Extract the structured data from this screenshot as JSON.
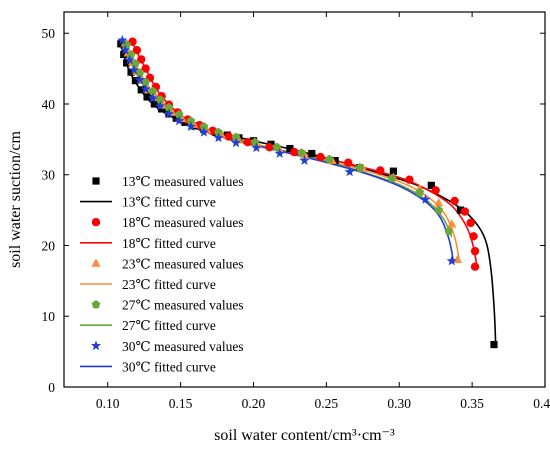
{
  "chart_data": {
    "type": "scatter",
    "title": "",
    "xlabel": "soil water content/cm³·cm⁻³",
    "ylabel": "soil water suction/cm",
    "xlim": [
      0.07,
      0.4
    ],
    "ylim": [
      0,
      53
    ],
    "x_ticks": [
      "0.10",
      "0.15",
      "0.20",
      "0.25",
      "0.30",
      "0.35",
      "0.40"
    ],
    "y_ticks": [
      "0",
      "10",
      "20",
      "30",
      "40",
      "50"
    ],
    "grid": false,
    "legend_position": "left",
    "series": [
      {
        "name": "13℃ measured values",
        "kind": "measured",
        "marker": "square",
        "color": "#000000",
        "x": [
          0.109,
          0.111,
          0.113,
          0.116,
          0.119,
          0.123,
          0.127,
          0.132,
          0.137,
          0.142,
          0.147,
          0.153,
          0.159,
          0.166,
          0.174,
          0.182,
          0.19,
          0.2,
          0.212,
          0.225,
          0.24,
          0.256,
          0.273,
          0.296,
          0.322,
          0.342,
          0.365
        ],
        "y": [
          48.5,
          47.0,
          45.8,
          44.5,
          43.3,
          42.0,
          41.0,
          40.0,
          39.3,
          38.6,
          38.0,
          37.4,
          36.9,
          36.4,
          36.0,
          35.6,
          35.2,
          34.8,
          34.3,
          33.7,
          33.0,
          32.0,
          31.0,
          30.5,
          28.5,
          25.0,
          6.0
        ]
      },
      {
        "name": "13℃ fitted curve",
        "kind": "fitted",
        "color": "#000000",
        "x": [
          0.109,
          0.115,
          0.125,
          0.135,
          0.15,
          0.17,
          0.2,
          0.23,
          0.26,
          0.29,
          0.31,
          0.33,
          0.345,
          0.355,
          0.36,
          0.363,
          0.365,
          0.366,
          0.366
        ],
        "y": [
          48.3,
          44.6,
          41.3,
          39.3,
          37.6,
          36.2,
          34.8,
          33.4,
          31.8,
          30.0,
          28.7,
          26.8,
          24.8,
          22.5,
          20.2,
          16.5,
          11.5,
          7.0,
          5.5
        ]
      },
      {
        "name": "18℃ measured values",
        "kind": "measured",
        "marker": "circle",
        "color": "#ff0000",
        "x": [
          0.117,
          0.12,
          0.123,
          0.126,
          0.129,
          0.133,
          0.137,
          0.142,
          0.148,
          0.155,
          0.163,
          0.172,
          0.183,
          0.196,
          0.211,
          0.228,
          0.246,
          0.265,
          0.287,
          0.307,
          0.325,
          0.338,
          0.345,
          0.349,
          0.351,
          0.352,
          0.352
        ],
        "y": [
          48.8,
          47.6,
          46.3,
          45.0,
          43.7,
          42.4,
          41.1,
          39.9,
          38.8,
          37.8,
          37.0,
          36.2,
          35.4,
          34.6,
          33.9,
          33.2,
          32.5,
          31.7,
          30.6,
          29.3,
          27.8,
          26.3,
          24.8,
          23.2,
          21.3,
          19.2,
          17.0
        ]
      },
      {
        "name": "18℃ fitted curve",
        "kind": "fitted",
        "color": "#ff0000",
        "x": [
          0.117,
          0.125,
          0.135,
          0.148,
          0.165,
          0.19,
          0.22,
          0.26,
          0.3,
          0.32,
          0.335,
          0.343,
          0.348,
          0.351,
          0.353
        ],
        "y": [
          48.6,
          45.4,
          41.6,
          38.8,
          36.6,
          34.9,
          33.4,
          31.8,
          29.6,
          27.8,
          25.8,
          23.8,
          21.8,
          19.7,
          17.5
        ]
      },
      {
        "name": "23℃ measured values",
        "kind": "measured",
        "marker": "triangle",
        "color": "#ff8c3a",
        "x": [
          0.112,
          0.114,
          0.117,
          0.12,
          0.124,
          0.128,
          0.133,
          0.138,
          0.144,
          0.151,
          0.159,
          0.168,
          0.178,
          0.19,
          0.203,
          0.218,
          0.235,
          0.254,
          0.275,
          0.296,
          0.314,
          0.327,
          0.336,
          0.34
        ],
        "y": [
          48.6,
          47.2,
          45.9,
          44.6,
          43.3,
          42.0,
          40.9,
          39.8,
          38.8,
          37.9,
          37.1,
          36.3,
          35.6,
          34.9,
          34.2,
          33.5,
          32.8,
          32.0,
          30.9,
          29.6,
          28.0,
          26.0,
          23.0,
          18.0
        ]
      },
      {
        "name": "23℃ fitted curve",
        "kind": "fitted",
        "color": "#ff8c3a",
        "x": [
          0.112,
          0.12,
          0.13,
          0.145,
          0.165,
          0.19,
          0.22,
          0.25,
          0.28,
          0.305,
          0.322,
          0.332,
          0.338,
          0.341
        ],
        "y": [
          48.4,
          44.6,
          41.3,
          38.6,
          36.5,
          34.9,
          33.4,
          32.0,
          30.4,
          28.6,
          26.5,
          24.2,
          21.2,
          18.2
        ]
      },
      {
        "name": "27℃ measured values",
        "kind": "measured",
        "marker": "pentagon",
        "color": "#6aa83a",
        "x": [
          0.113,
          0.116,
          0.119,
          0.122,
          0.126,
          0.131,
          0.136,
          0.142,
          0.149,
          0.157,
          0.166,
          0.176,
          0.188,
          0.201,
          0.216,
          0.233,
          0.252,
          0.273,
          0.295,
          0.314,
          0.327,
          0.334
        ],
        "y": [
          48.4,
          47.0,
          45.7,
          44.4,
          43.1,
          41.8,
          40.6,
          39.5,
          38.5,
          37.6,
          36.8,
          36.0,
          35.3,
          34.6,
          33.9,
          33.1,
          32.2,
          31.0,
          29.5,
          27.5,
          25.0,
          22.0
        ]
      },
      {
        "name": "27℃ fitted curve",
        "kind": "fitted",
        "color": "#6aa83a",
        "x": [
          0.113,
          0.121,
          0.131,
          0.146,
          0.166,
          0.19,
          0.22,
          0.25,
          0.278,
          0.3,
          0.318,
          0.33,
          0.336
        ],
        "y": [
          48.2,
          44.5,
          41.2,
          38.5,
          36.4,
          34.8,
          33.4,
          31.9,
          30.2,
          28.6,
          26.5,
          23.9,
          21.2
        ]
      },
      {
        "name": "30℃ measured values",
        "kind": "measured",
        "marker": "star",
        "color": "#1f3fd6",
        "x": [
          0.11,
          0.112,
          0.115,
          0.118,
          0.122,
          0.126,
          0.131,
          0.136,
          0.142,
          0.149,
          0.157,
          0.166,
          0.176,
          0.188,
          0.202,
          0.218,
          0.235,
          0.266,
          0.318,
          0.336
        ],
        "y": [
          49.0,
          47.6,
          46.2,
          44.8,
          43.4,
          42.1,
          40.8,
          39.7,
          38.6,
          37.6,
          36.8,
          36.0,
          35.2,
          34.5,
          33.8,
          33.0,
          32.0,
          30.4,
          26.5,
          17.8
        ]
      },
      {
        "name": "30℃ fitted curve",
        "kind": "fitted",
        "color": "#1f3fd6",
        "x": [
          0.11,
          0.118,
          0.128,
          0.142,
          0.16,
          0.185,
          0.215,
          0.245,
          0.275,
          0.3,
          0.318,
          0.328,
          0.334,
          0.337
        ],
        "y": [
          48.8,
          45.0,
          41.6,
          38.8,
          36.6,
          34.9,
          33.5,
          32.0,
          30.3,
          28.4,
          26.2,
          24.0,
          21.0,
          18.0
        ]
      }
    ]
  }
}
